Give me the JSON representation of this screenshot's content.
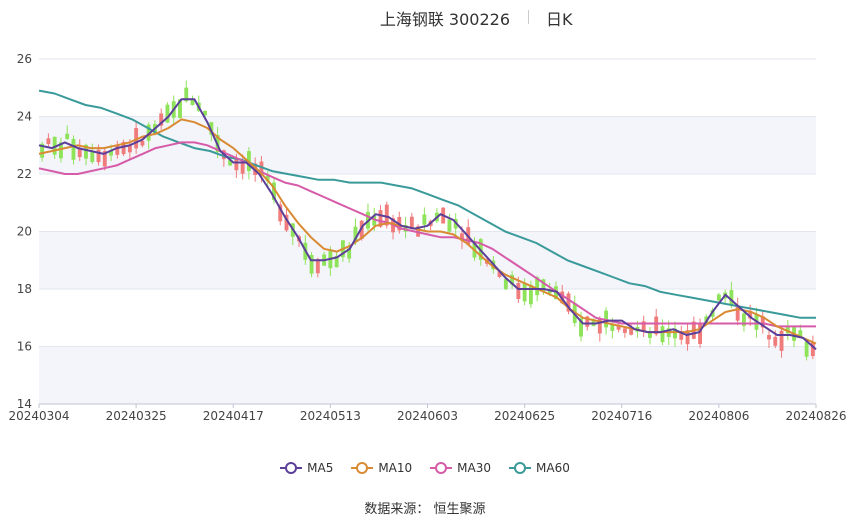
{
  "title": {
    "name": "上海钢联 300226",
    "period": "日K"
  },
  "source": "数据来源： 恒生聚源",
  "colors": {
    "up": "#f07b7b",
    "down": "#8fe35a",
    "ma5": "#5b3f99",
    "ma10": "#d98b34",
    "ma30": "#d65ba8",
    "ma60": "#3a9a9a",
    "band": "#f4f5fb",
    "grid": "#e3e6ef"
  },
  "chart_data": {
    "type": "candlestick",
    "ylim": [
      14,
      26
    ],
    "yticks": [
      14,
      16,
      18,
      20,
      22,
      24,
      26
    ],
    "xlabels": [
      "20240304",
      "20240325",
      "20240417",
      "20240513",
      "20240603",
      "20240625",
      "20240716",
      "20240806",
      "20240826"
    ],
    "legend": [
      "MA5",
      "MA10",
      "MA30",
      "MA60"
    ],
    "ma5": [
      23.0,
      22.9,
      23.1,
      22.9,
      22.8,
      22.7,
      22.9,
      23.0,
      23.2,
      23.6,
      24.0,
      24.6,
      24.6,
      23.8,
      22.8,
      22.4,
      22.4,
      22.0,
      21.3,
      20.5,
      19.8,
      19.0,
      19.0,
      19.1,
      19.4,
      20.2,
      20.6,
      20.5,
      20.2,
      20.1,
      20.2,
      20.6,
      20.4,
      19.9,
      19.4,
      18.9,
      18.4,
      18.0,
      18.0,
      18.0,
      17.9,
      17.3,
      16.8,
      16.8,
      16.9,
      16.9,
      16.6,
      16.5,
      16.5,
      16.6,
      16.4,
      16.5,
      17.2,
      17.8,
      17.4,
      17.0,
      16.7,
      16.4,
      16.4,
      16.3,
      15.9
    ],
    "ma10": [
      22.7,
      22.8,
      22.9,
      23.0,
      22.9,
      22.9,
      23.0,
      23.1,
      23.3,
      23.4,
      23.6,
      23.9,
      23.8,
      23.6,
      23.2,
      22.9,
      22.5,
      22.1,
      21.6,
      20.9,
      20.3,
      19.8,
      19.4,
      19.3,
      19.5,
      19.8,
      20.2,
      20.3,
      20.2,
      20.1,
      20.0,
      20.0,
      19.9,
      19.6,
      19.2,
      18.8,
      18.5,
      18.3,
      18.1,
      17.9,
      17.7,
      17.3,
      17.0,
      16.9,
      16.8,
      16.7,
      16.6,
      16.5,
      16.5,
      16.5,
      16.5,
      16.6,
      16.9,
      17.2,
      17.3,
      17.2,
      17.0,
      16.7,
      16.5,
      16.3,
      16.1
    ],
    "ma30": [
      22.2,
      22.1,
      22.0,
      22.0,
      22.1,
      22.2,
      22.3,
      22.5,
      22.7,
      22.9,
      23.0,
      23.1,
      23.1,
      23.0,
      22.8,
      22.6,
      22.4,
      22.1,
      21.9,
      21.7,
      21.6,
      21.4,
      21.2,
      21.0,
      20.8,
      20.6,
      20.4,
      20.3,
      20.1,
      20.0,
      19.9,
      19.8,
      19.8,
      19.7,
      19.6,
      19.4,
      19.1,
      18.8,
      18.5,
      18.2,
      17.9,
      17.6,
      17.3,
      17.0,
      16.9,
      16.8,
      16.8,
      16.8,
      16.8,
      16.8,
      16.8,
      16.8,
      16.8,
      16.8,
      16.8,
      16.8,
      16.8,
      16.7,
      16.7,
      16.7,
      16.7
    ],
    "ma60": [
      24.9,
      24.8,
      24.6,
      24.4,
      24.3,
      24.1,
      23.9,
      23.6,
      23.3,
      23.1,
      22.9,
      22.8,
      22.6,
      22.5,
      22.3,
      22.1,
      22.0,
      21.9,
      21.8,
      21.8,
      21.7,
      21.7,
      21.7,
      21.6,
      21.5,
      21.3,
      21.1,
      20.9,
      20.6,
      20.3,
      20.0,
      19.8,
      19.6,
      19.3,
      19.0,
      18.8,
      18.6,
      18.4,
      18.2,
      18.1,
      17.9,
      17.8,
      17.7,
      17.6,
      17.5,
      17.4,
      17.3,
      17.2,
      17.1,
      17.0,
      17.0
    ]
  }
}
